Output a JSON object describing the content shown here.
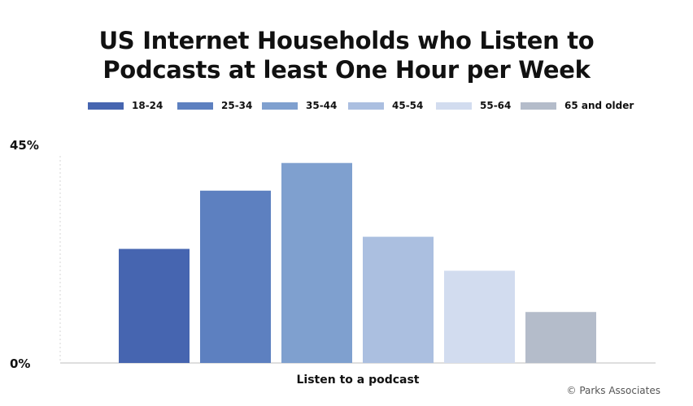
{
  "chart_data": {
    "type": "bar",
    "title": "US Internet Households who Listen to Podcasts at least One Hour per Week",
    "title_lines": [
      "US Internet Households who Listen to",
      "Podcasts at least One Hour per Week"
    ],
    "categories": [
      "Listen to a podcast"
    ],
    "xlabel": "Listen to a podcast",
    "ylabel": "",
    "ylim": [
      0,
      45
    ],
    "y_ticks": [
      {
        "value": 0,
        "label": "0%"
      },
      {
        "value": 45,
        "label": "45%"
      }
    ],
    "series": [
      {
        "name": "18-24",
        "values": [
          23.5
        ],
        "color": "#4665b0"
      },
      {
        "name": "25-34",
        "values": [
          35.5
        ],
        "color": "#5d80c0"
      },
      {
        "name": "35-44",
        "values": [
          41.2
        ],
        "color": "#7fa0cf"
      },
      {
        "name": "45-54",
        "values": [
          26.0
        ],
        "color": "#abbfe0"
      },
      {
        "name": "55-64",
        "values": [
          19.0
        ],
        "color": "#d2dcef"
      },
      {
        "name": "65 and older",
        "values": [
          10.5
        ],
        "color": "#b4bcca"
      }
    ],
    "legend_position": "top",
    "grid": false,
    "source": "© Parks Associates"
  }
}
